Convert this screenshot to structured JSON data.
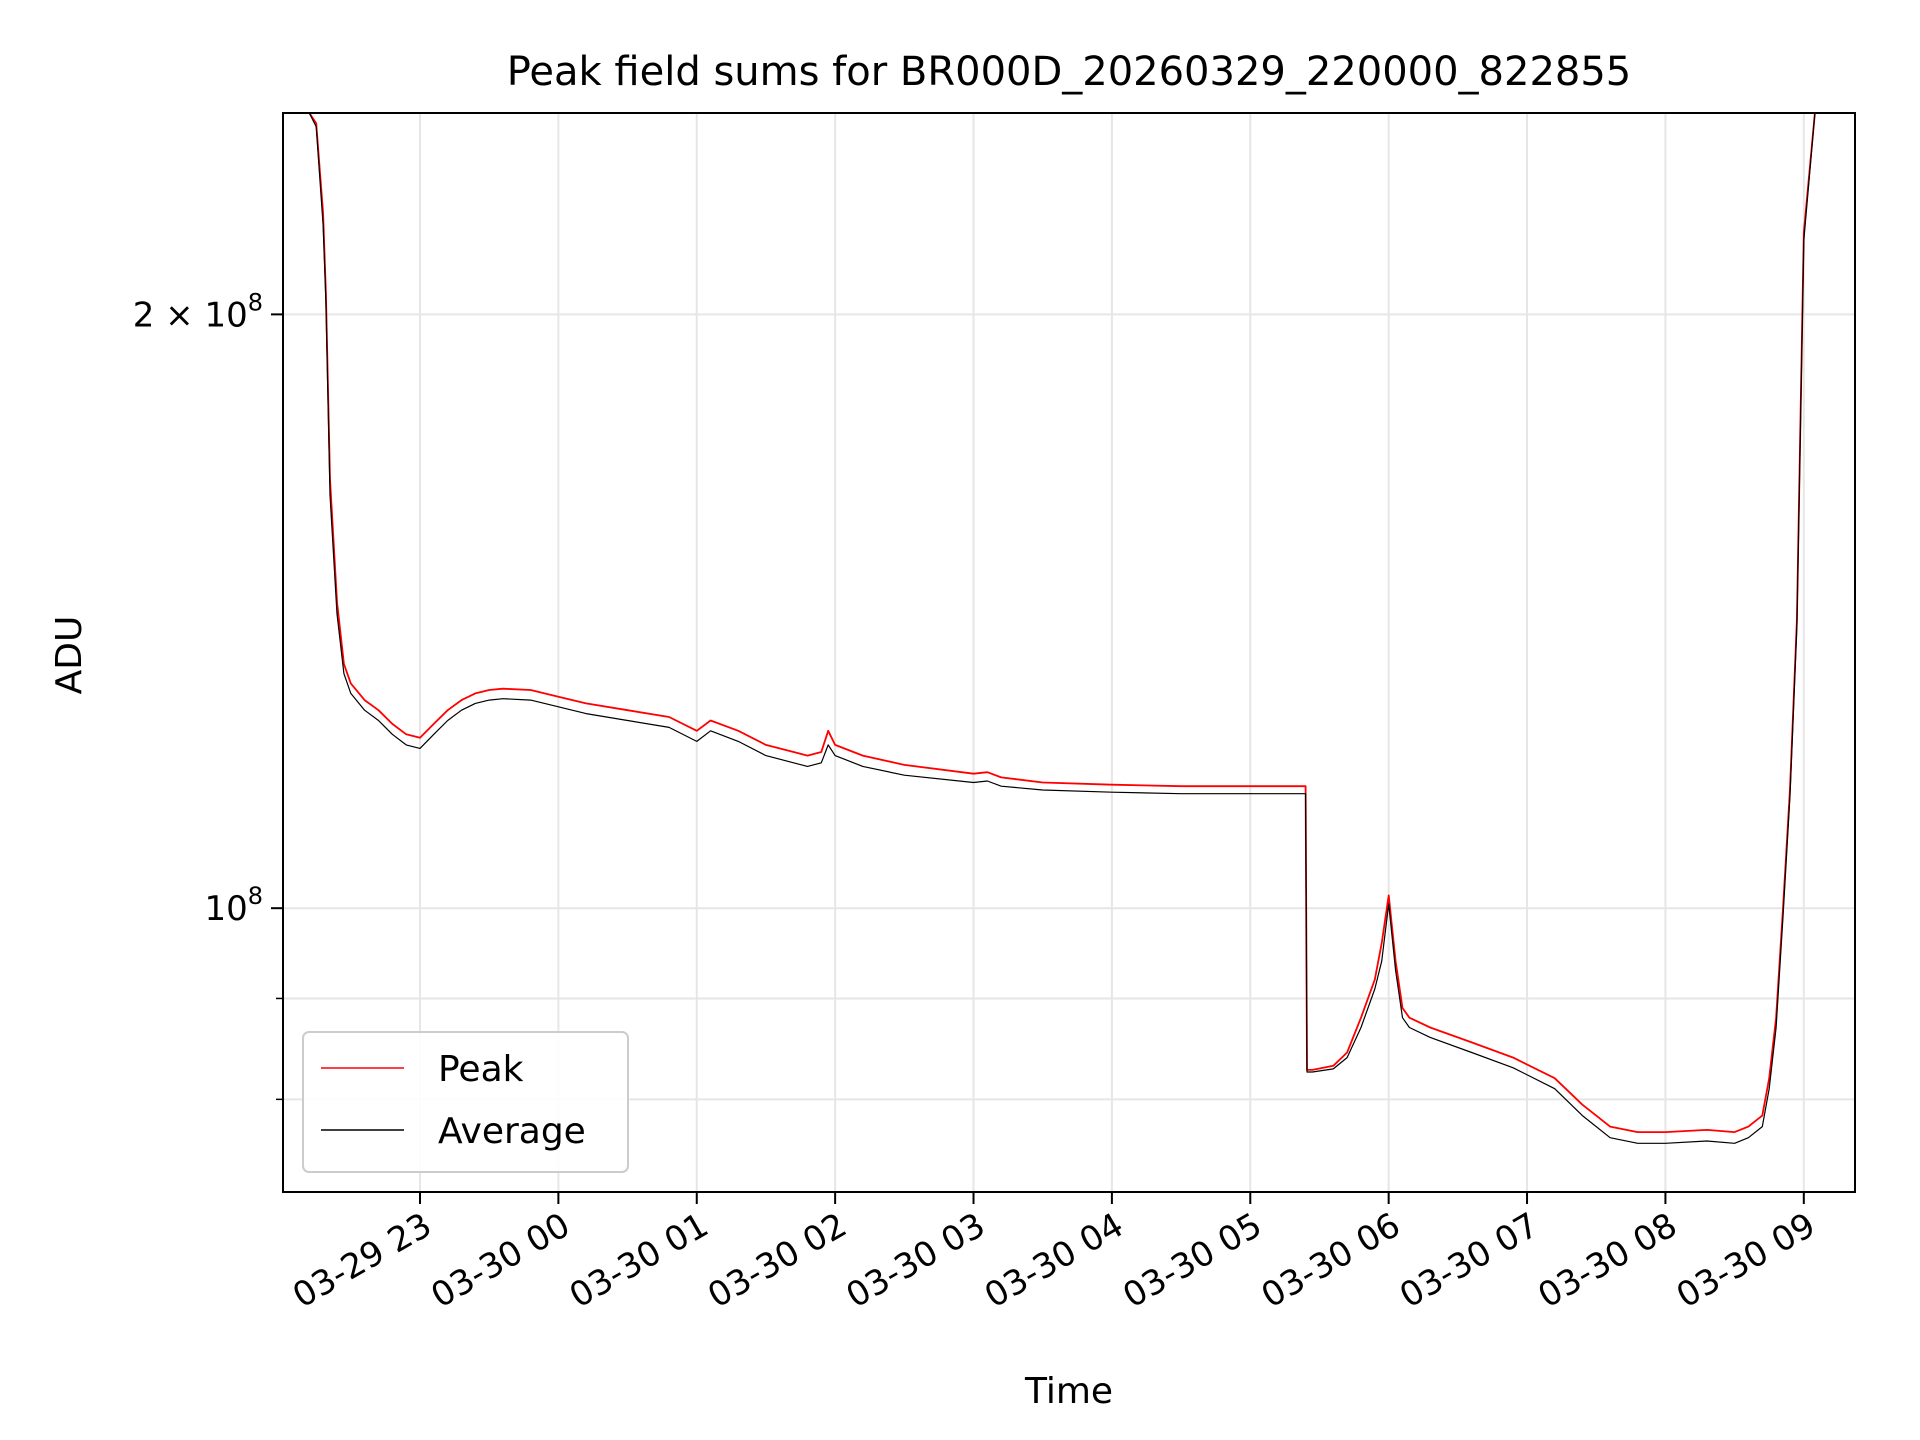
{
  "chart_data": {
    "type": "line",
    "title": "Peak field sums for BR000D_20260329_220000_822855",
    "xlabel": "Time",
    "ylabel": "ADU",
    "yscale": "log",
    "xlim_hours": [
      -0.99,
      10.37
    ],
    "ylim": [
      71800000,
      253000000
    ],
    "grid": true,
    "legend_location": "lower left",
    "x_ticks": [
      {
        "label": "03-29 23",
        "hour": 0
      },
      {
        "label": "03-30 00",
        "hour": 1
      },
      {
        "label": "03-30 01",
        "hour": 2
      },
      {
        "label": "03-30 02",
        "hour": 3
      },
      {
        "label": "03-30 03",
        "hour": 4
      },
      {
        "label": "03-30 04",
        "hour": 5
      },
      {
        "label": "03-30 05",
        "hour": 6
      },
      {
        "label": "03-30 06",
        "hour": 7
      },
      {
        "label": "03-30 07",
        "hour": 8
      },
      {
        "label": "03-30 08",
        "hour": 9
      },
      {
        "label": "03-30 09",
        "hour": 10
      }
    ],
    "y_ticks": [
      {
        "base": "2 × 10",
        "exp": "8",
        "value": 200000000
      },
      {
        "base": "10",
        "exp": "8",
        "value": 100000000
      }
    ],
    "y_minor_ticks": [
      90000000,
      80000000,
      300000000
    ],
    "series": [
      {
        "name": "Peak",
        "color": "#ff0000",
        "x_hours": [
          -0.99,
          -0.8,
          -0.75,
          -0.7,
          -0.68,
          -0.65,
          -0.6,
          -0.55,
          -0.5,
          -0.4,
          -0.3,
          -0.2,
          -0.1,
          0.0,
          0.1,
          0.2,
          0.3,
          0.4,
          0.5,
          0.6,
          0.8,
          1.0,
          1.2,
          1.5,
          1.8,
          2.0,
          2.1,
          2.3,
          2.5,
          2.7,
          2.8,
          2.9,
          2.95,
          3.0,
          3.2,
          3.5,
          4.0,
          4.1,
          4.2,
          4.5,
          5.0,
          5.5,
          5.8,
          6.0,
          6.2,
          6.4,
          6.41,
          6.45,
          6.6,
          6.7,
          6.8,
          6.9,
          6.95,
          7.0,
          7.05,
          7.1,
          7.15,
          7.3,
          7.6,
          7.9,
          8.2,
          8.4,
          8.6,
          8.8,
          9.0,
          9.3,
          9.5,
          9.6,
          9.7,
          9.75,
          9.8,
          9.85,
          9.9,
          9.95,
          10.0,
          10.08,
          10.37
        ],
        "values": [
          253000000,
          253000000,
          250000000,
          225000000,
          205000000,
          165000000,
          143000000,
          133000000,
          130000000,
          127500000,
          126000000,
          124000000,
          122500000,
          122000000,
          124000000,
          126000000,
          127500000,
          128500000,
          129000000,
          129200000,
          129000000,
          128000000,
          127000000,
          126000000,
          125000000,
          123000000,
          124500000,
          123000000,
          121000000,
          120000000,
          119500000,
          120000000,
          123000000,
          121000000,
          119500000,
          118200000,
          117000000,
          117200000,
          116500000,
          115800000,
          115500000,
          115300000,
          115300000,
          115300000,
          115300000,
          115300000,
          82800000,
          82800000,
          83200000,
          84500000,
          88000000,
          92000000,
          96000000,
          101500000,
          94000000,
          89000000,
          88000000,
          87000000,
          85500000,
          84000000,
          82000000,
          79500000,
          77500000,
          77000000,
          77000000,
          77200000,
          77000000,
          77500000,
          78500000,
          82000000,
          88000000,
          100000000,
          115000000,
          140000000,
          220000000,
          253000000,
          253000000
        ]
      },
      {
        "name": "Average",
        "color": "#000000",
        "x_hours": [
          -0.99,
          -0.8,
          -0.75,
          -0.7,
          -0.68,
          -0.65,
          -0.6,
          -0.55,
          -0.5,
          -0.4,
          -0.3,
          -0.2,
          -0.1,
          0.0,
          0.1,
          0.2,
          0.3,
          0.4,
          0.5,
          0.6,
          0.8,
          1.0,
          1.2,
          1.5,
          1.8,
          2.0,
          2.1,
          2.3,
          2.5,
          2.7,
          2.8,
          2.9,
          2.95,
          3.0,
          3.2,
          3.5,
          4.0,
          4.1,
          4.2,
          4.5,
          5.0,
          5.5,
          5.8,
          6.0,
          6.2,
          6.4,
          6.41,
          6.45,
          6.6,
          6.7,
          6.8,
          6.9,
          6.95,
          7.0,
          7.05,
          7.1,
          7.15,
          7.3,
          7.6,
          7.9,
          8.2,
          8.4,
          8.6,
          8.8,
          9.0,
          9.3,
          9.5,
          9.6,
          9.7,
          9.75,
          9.8,
          9.85,
          9.9,
          9.95,
          10.0,
          10.08,
          10.37
        ],
        "values": [
          253000000,
          253000000,
          249000000,
          222000000,
          203000000,
          162000000,
          141000000,
          131500000,
          128500000,
          126000000,
          124500000,
          122500000,
          121000000,
          120500000,
          122500000,
          124500000,
          126000000,
          127000000,
          127500000,
          127700000,
          127500000,
          126500000,
          125500000,
          124500000,
          123500000,
          121500000,
          123000000,
          121500000,
          119500000,
          118500000,
          118000000,
          118500000,
          121000000,
          119500000,
          118000000,
          116800000,
          115800000,
          116000000,
          115300000,
          114800000,
          114500000,
          114300000,
          114300000,
          114300000,
          114300000,
          114300000,
          82600000,
          82600000,
          82900000,
          84000000,
          87000000,
          91000000,
          94000000,
          100500000,
          93000000,
          88000000,
          87000000,
          86000000,
          84500000,
          83000000,
          81000000,
          78500000,
          76500000,
          76000000,
          76000000,
          76200000,
          76000000,
          76500000,
          77500000,
          81000000,
          87000000,
          99000000,
          114000000,
          139000000,
          218000000,
          253000000,
          253000000
        ]
      }
    ]
  }
}
